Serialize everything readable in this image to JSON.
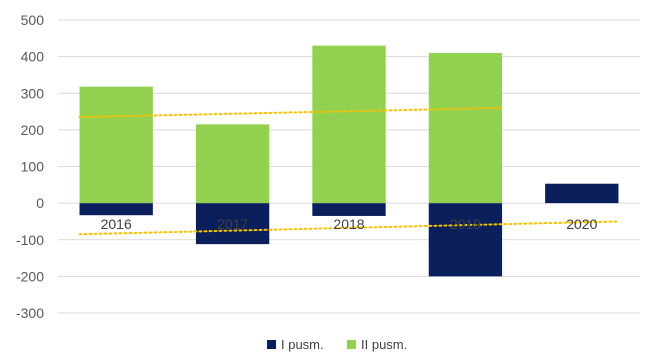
{
  "chart_data": {
    "type": "bar",
    "stacked": true,
    "categories": [
      "2016",
      "2017",
      "2018",
      "2019",
      "2020"
    ],
    "series": [
      {
        "name": "I pusm.",
        "values": [
          -33,
          -112,
          -35,
          -200,
          53
        ],
        "color": "#0a1f5c"
      },
      {
        "name": "II pusm.",
        "values": [
          318,
          215,
          430,
          410,
          null
        ],
        "color": "#92d050"
      }
    ],
    "trendlines": [
      {
        "series": "II pusm.",
        "color": "#f2c200",
        "style": "dotted",
        "from": {
          "category": "2016",
          "y": 235
        },
        "to": {
          "category": "2019",
          "y": 260
        }
      },
      {
        "series": "I pusm.",
        "color": "#f2c200",
        "style": "dotted",
        "from": {
          "category": "2016",
          "y": -85
        },
        "to": {
          "category": "2020",
          "y": -50
        }
      }
    ],
    "yticks": [
      500,
      400,
      300,
      200,
      100,
      0,
      -100,
      -200,
      -300
    ],
    "ylim": [
      -300,
      500
    ],
    "grid": true,
    "legend": "bottom"
  }
}
